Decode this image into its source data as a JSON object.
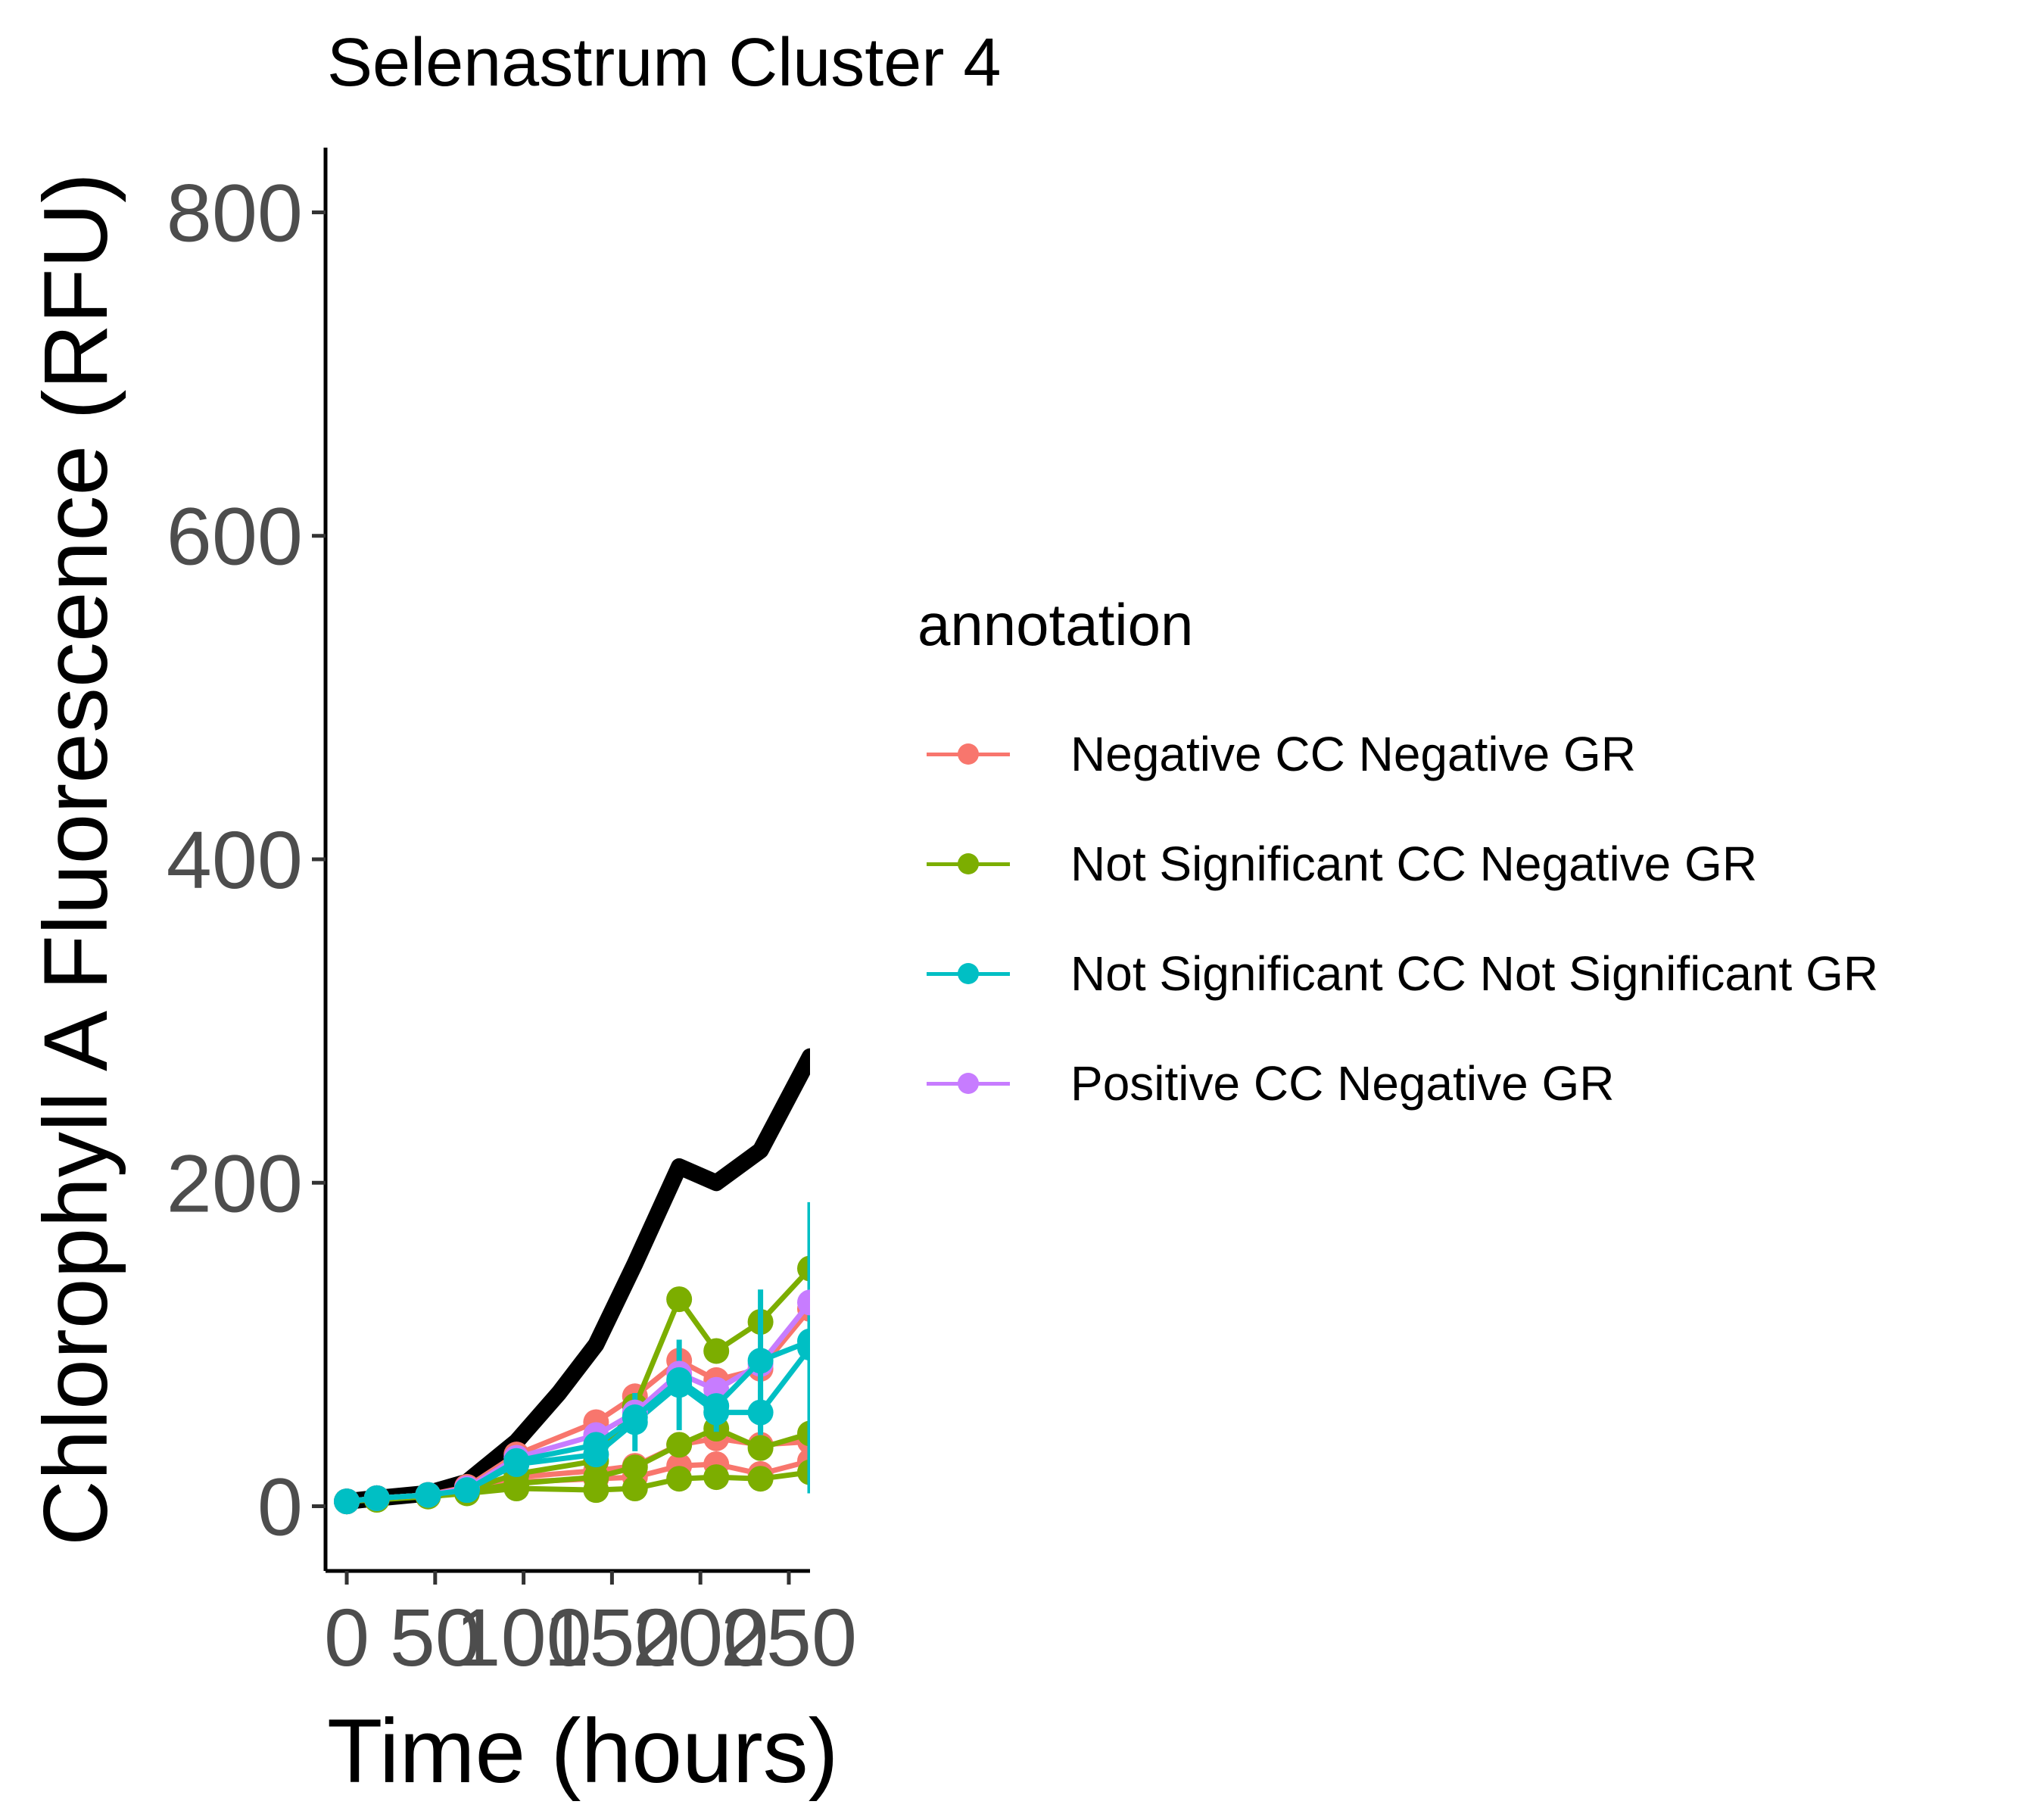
{
  "chart_data": {
    "type": "line",
    "title": "Selenastrum Cluster 4",
    "xlabel": "Time (hours)",
    "ylabel": "Chlorophyll A Fluorescence (RFU)",
    "xlim": [
      -12,
      262
    ],
    "ylim": [
      -40,
      840
    ],
    "x_ticks": [
      "0",
      "50",
      "100",
      "150",
      "200",
      "250"
    ],
    "y_ticks": [
      "0",
      "200",
      "400",
      "600",
      "800"
    ],
    "grid": false,
    "legend": {
      "title": "annotation",
      "position": "right",
      "entries": [
        {
          "label": "Negative CC Negative GR",
          "color": "#F8766D"
        },
        {
          "label": "Not Significant CC Negative GR",
          "color": "#7CAE00"
        },
        {
          "label": "Not Significant CC Not Significant GR",
          "color": "#00BFC4"
        },
        {
          "label": "Positive CC Negative GR",
          "color": "#C77CFF"
        }
      ]
    },
    "reference_line": {
      "color": "#000000",
      "x": [
        0,
        17,
        46,
        68,
        96,
        120,
        141,
        163,
        188,
        209,
        234,
        262
      ],
      "y": [
        3,
        5,
        8,
        15,
        40,
        70,
        100,
        150,
        210,
        200,
        220,
        278
      ]
    },
    "series": [
      {
        "annotation": "Negative CC Negative GR",
        "color": "#F8766D",
        "x": [
          0,
          17,
          46,
          68,
          96,
          141,
          163,
          188,
          209,
          234,
          262
        ],
        "y": [
          3,
          5,
          7,
          12,
          32,
          52,
          68,
          90,
          78,
          85,
          122
        ],
        "err": [
          0,
          0,
          0,
          0,
          0,
          0,
          0,
          0,
          0,
          0,
          0
        ]
      },
      {
        "annotation": "Negative CC Negative GR",
        "color": "#F8766D",
        "x": [
          0,
          17,
          46,
          68,
          96,
          141,
          163,
          188,
          209,
          234,
          262
        ],
        "y": [
          3,
          5,
          7,
          10,
          18,
          22,
          25,
          38,
          42,
          38,
          40
        ],
        "err": [
          0,
          0,
          0,
          0,
          0,
          0,
          0,
          0,
          0,
          0,
          0
        ]
      },
      {
        "annotation": "Negative CC Negative GR",
        "color": "#F8766D",
        "x": [
          0,
          17,
          46,
          68,
          96,
          141,
          163,
          188,
          209,
          234,
          262
        ],
        "y": [
          3,
          5,
          7,
          9,
          15,
          17,
          18,
          25,
          26,
          20,
          28
        ],
        "err": [
          0,
          0,
          0,
          0,
          0,
          0,
          0,
          0,
          0,
          0,
          0
        ]
      },
      {
        "annotation": "Not Significant CC Negative GR",
        "color": "#7CAE00",
        "x": [
          0,
          17,
          46,
          68,
          96,
          141,
          163,
          188,
          209,
          234,
          262
        ],
        "y": [
          3,
          5,
          7,
          10,
          20,
          28,
          62,
          128,
          96,
          114,
          147
        ],
        "err": [
          0,
          0,
          0,
          0,
          0,
          0,
          0,
          0,
          0,
          0,
          0
        ]
      },
      {
        "annotation": "Not Significant CC Negative GR",
        "color": "#7CAE00",
        "x": [
          0,
          17,
          46,
          68,
          96,
          141,
          163,
          188,
          209,
          234,
          262
        ],
        "y": [
          3,
          5,
          7,
          9,
          14,
          18,
          24,
          38,
          48,
          36,
          45
        ],
        "err": [
          0,
          0,
          0,
          0,
          0,
          0,
          0,
          0,
          0,
          0,
          0
        ]
      },
      {
        "annotation": "Not Significant CC Negative GR",
        "color": "#7CAE00",
        "x": [
          0,
          17,
          46,
          68,
          96,
          141,
          163,
          188,
          209,
          234,
          262
        ],
        "y": [
          3,
          4,
          6,
          8,
          11,
          10,
          11,
          17,
          18,
          17,
          21
        ],
        "err": [
          0,
          0,
          0,
          0,
          0,
          0,
          0,
          0,
          0,
          0,
          0
        ]
      },
      {
        "annotation": "Not Significant CC Not Significant GR",
        "color": "#00BFC4",
        "x": [
          0,
          17,
          46,
          68,
          96,
          141,
          163,
          188,
          209,
          234,
          262
        ],
        "y": [
          3,
          5,
          7,
          10,
          26,
          32,
          52,
          75,
          58,
          58,
          98
        ],
        "err": [
          0,
          0,
          0,
          0,
          0,
          0,
          18,
          28,
          12,
          14,
          90
        ]
      },
      {
        "annotation": "Positive CC Negative GR",
        "color": "#C77CFF",
        "x": [
          0,
          17,
          46,
          68,
          96,
          141,
          163,
          188,
          209,
          234,
          262
        ],
        "y": [
          3,
          5,
          7,
          11,
          30,
          44,
          58,
          82,
          72,
          88,
          126
        ],
        "err": [
          0,
          0,
          0,
          0,
          0,
          0,
          0,
          0,
          0,
          0,
          0
        ]
      },
      {
        "annotation": "Not Significant CC Not Significant GR",
        "color": "#00BFC4",
        "x": [
          0,
          17,
          46,
          68,
          96,
          141,
          163,
          188,
          209,
          234,
          262
        ],
        "y": [
          3,
          5,
          7,
          10,
          28,
          38,
          55,
          78,
          62,
          90,
          102
        ],
        "err": [
          0,
          0,
          0,
          0,
          0,
          0,
          0,
          0,
          0,
          44,
          0
        ]
      }
    ]
  }
}
